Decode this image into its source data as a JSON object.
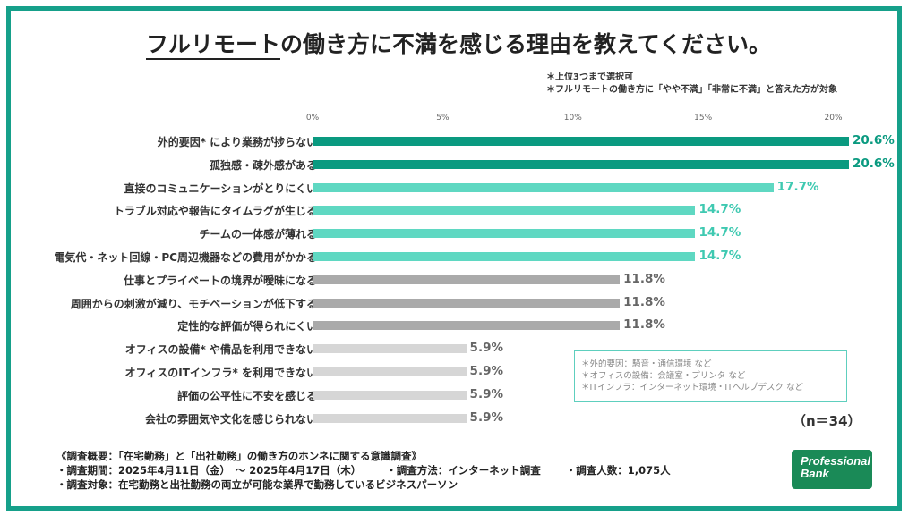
{
  "title_underlined": "フルリモート",
  "title_rest": "の働き方に不満を感じる理由を教えてください。",
  "notes": [
    "＊上位3つまで選択可",
    "＊フルリモートの働き方に「やや不満」「非常に不満」と答えた方が対象"
  ],
  "footnotes": [
    "＊外的要因：騒音・通信環境 など",
    "＊オフィスの設備：会議室・プリンタ など",
    "＊ITインフラ：インターネット環境・ITヘルプデスク など"
  ],
  "sample_size": "（n＝34）",
  "survey": {
    "title": "《調査概要：「在宅勤務」と「出社勤務」の働き方のホンネに関する意識調査》",
    "period": "・調査期間：2025年4月11日（金）　〜 2025年4月17日（木）",
    "method": "・調査方法：インターネット調査",
    "respondents": "・調査人数：1,075人",
    "subjects": "・調査対象：在宅勤務と出社勤務の両立が可能な業界で勤務しているビジネスパーソン"
  },
  "logo": {
    "line1": "Professional",
    "line2": "Bank"
  },
  "colors": {
    "dark": "#0a9a80",
    "mid": "#5fd8c2",
    "gray": "#aaaaaa",
    "light": "#d6d6d6",
    "frame": "#16a08a"
  },
  "chart_data": {
    "type": "bar",
    "orientation": "horizontal",
    "xlim": [
      0,
      20.6
    ],
    "ticks": [
      "0%",
      "5%",
      "10%",
      "15%",
      "20%"
    ],
    "tick_values": [
      0,
      5,
      10,
      15,
      20
    ],
    "categories": [
      "外的要因* により業務が捗らない",
      "孤独感・疎外感がある",
      "直接のコミュニケーションがとりにくい",
      "トラブル対応や報告にタイムラグが生じる",
      "チームの一体感が薄れる",
      "電気代・ネット回線・PC周辺機器などの費用がかかる",
      "仕事とプライベートの境界が曖昧になる",
      "周囲からの刺激が減り、モチベーションが低下する",
      "定性的な評価が得られにくい",
      "オフィスの設備* や備品を利用できない",
      "オフィスのITインフラ* を利用できない",
      "評価の公平性に不安を感じる",
      "会社の雰囲気や文化を感じられない"
    ],
    "values": [
      20.6,
      20.6,
      17.7,
      14.7,
      14.7,
      14.7,
      11.8,
      11.8,
      11.8,
      5.9,
      5.9,
      5.9,
      5.9
    ],
    "labels": [
      "20.6%",
      "20.6%",
      "17.7%",
      "14.7%",
      "14.7%",
      "14.7%",
      "11.8%",
      "11.8%",
      "11.8%",
      "5.9%",
      "5.9%",
      "5.9%",
      "5.9%"
    ],
    "color_groups": [
      "dark",
      "dark",
      "mid",
      "mid",
      "mid",
      "mid",
      "gray",
      "gray",
      "gray",
      "light",
      "light",
      "light",
      "light"
    ]
  }
}
